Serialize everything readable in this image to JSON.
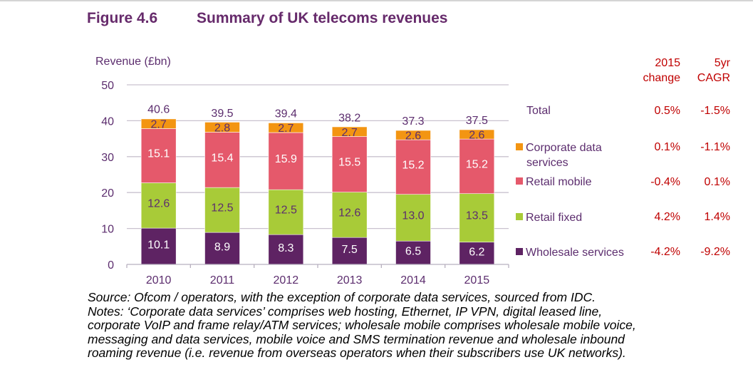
{
  "figure_number": "Figure 4.6",
  "figure_title": "Summary of UK telecoms revenues",
  "stats_table": {
    "column_headers": [
      {
        "line1": "2015",
        "line2": "change"
      },
      {
        "line1": "5yr",
        "line2": "CAGR"
      }
    ],
    "rows": [
      {
        "label": "Total",
        "change_2015": "0.5%",
        "cagr_5yr": "-1.5%"
      },
      {
        "label": "Corporate data services",
        "change_2015": "0.1%",
        "cagr_5yr": "-1.1%"
      },
      {
        "label": "Retail mobile",
        "change_2015": "-0.4%",
        "cagr_5yr": "0.1%"
      },
      {
        "label": "Retail fixed",
        "change_2015": "4.2%",
        "cagr_5yr": "1.4%"
      },
      {
        "label": "Wholesale services",
        "change_2015": "-4.2%",
        "cagr_5yr": "-9.2%"
      }
    ]
  },
  "legend": {
    "total_label": "Total",
    "items": [
      {
        "line1": "Corporate data",
        "line2": "services",
        "color": "#f39512"
      },
      {
        "line1": "Retail mobile",
        "color": "#e5596b"
      },
      {
        "line1": "Retail fixed",
        "color": "#a8cb38"
      },
      {
        "line1": "Wholesale services",
        "color": "#5e2363"
      }
    ]
  },
  "notes": {
    "source": "Source: Ofcom / operators, with the exception of corporate data services, sourced from IDC.",
    "lines": [
      "Notes: ‘Corporate data services’ comprises web hosting, Ethernet, IP VPN, digital leased line,",
      "corporate VoIP and frame relay/ATM services; wholesale mobile comprises wholesale mobile voice,",
      "messaging and data services, mobile voice and SMS termination revenue and wholesale inbound",
      "roaming revenue (i.e. revenue from overseas operators when their subscribers use UK networks)."
    ]
  },
  "chart_data": {
    "type": "bar",
    "stacked": true,
    "title": "Summary of UK telecoms revenues",
    "xlabel": "",
    "ylabel": "Revenue (£bn)",
    "ylim": [
      0,
      50
    ],
    "yticks": [
      0,
      10,
      20,
      30,
      40,
      50
    ],
    "grid": true,
    "legend_position": "right",
    "categories": [
      "2010",
      "2011",
      "2012",
      "2013",
      "2014",
      "2015"
    ],
    "series": [
      {
        "name": "Wholesale services",
        "color": "#5e2363",
        "label_color": "#ffffff",
        "values": [
          10.1,
          8.9,
          8.3,
          7.5,
          6.5,
          6.2
        ]
      },
      {
        "name": "Retail fixed",
        "color": "#a8cb38",
        "label_color": "#5c2d6e",
        "values": [
          12.6,
          12.5,
          12.5,
          12.6,
          13.0,
          13.5
        ]
      },
      {
        "name": "Retail mobile",
        "color": "#e5596b",
        "label_color": "#ffffff",
        "values": [
          15.1,
          15.4,
          15.9,
          15.5,
          15.2,
          15.2
        ]
      },
      {
        "name": "Corporate data services",
        "color": "#f39512",
        "label_color": "#5c2d6e",
        "values": [
          2.7,
          2.8,
          2.7,
          2.7,
          2.6,
          2.6
        ]
      }
    ],
    "totals": [
      40.6,
      39.5,
      39.4,
      38.2,
      37.3,
      37.5
    ],
    "total_labels": [
      "40.6",
      "39.5",
      "39.4",
      "38.2",
      "37.3",
      "37.5"
    ],
    "value_labels": [
      [
        "10.1",
        "8.9",
        "8.3",
        "7.5",
        "6.5",
        "6.2"
      ],
      [
        "12.6",
        "12.5",
        "12.5",
        "12.6",
        "13.0",
        "13.5"
      ],
      [
        "15.1",
        "15.4",
        "15.9",
        "15.5",
        "15.2",
        "15.2"
      ],
      [
        "2.7",
        "2.8",
        "2.7",
        "2.7",
        "2.6",
        "2.6"
      ]
    ]
  }
}
